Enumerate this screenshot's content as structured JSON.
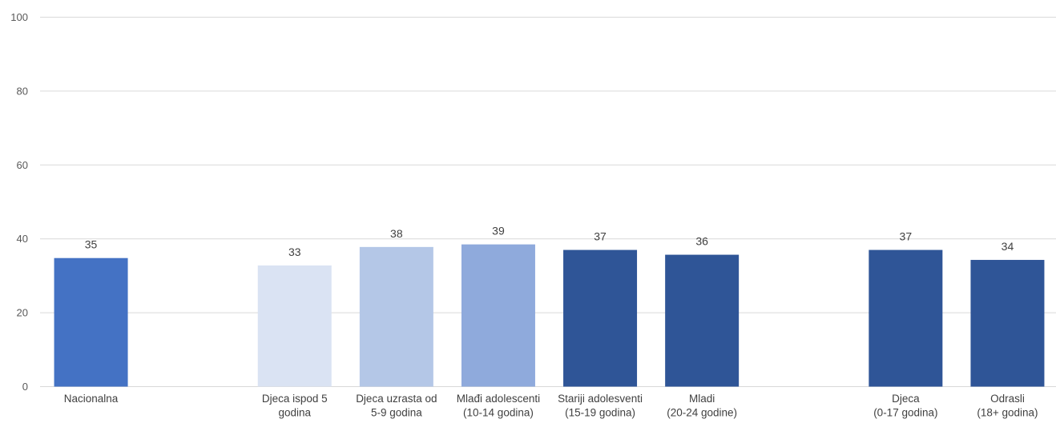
{
  "chart_data": {
    "type": "bar",
    "title": "",
    "xlabel": "",
    "ylabel": "",
    "ylim": [
      0,
      100
    ],
    "yticks": [
      0,
      20,
      40,
      60,
      80,
      100
    ],
    "grid": true,
    "legend": "none",
    "data_labels": true,
    "categories": [
      [
        "Nacionalna"
      ],
      [],
      [
        "Djeca ispod 5",
        "godina"
      ],
      [
        "Djeca uzrasta od",
        "5-9 godina"
      ],
      [
        "Mlađi adolescenti",
        "(10-14 godina)"
      ],
      [
        "Stariji adolesventi",
        "(15-19 godina)"
      ],
      [
        "Mladi",
        "(20-24 godine)"
      ],
      [],
      [
        "Djeca",
        "(0-17 godina)"
      ],
      [
        "Odrasli",
        "(18+ godina)"
      ]
    ],
    "values": [
      34.8,
      null,
      32.8,
      37.8,
      38.5,
      37.0,
      35.7,
      null,
      37.0,
      34.3
    ],
    "value_labels": [
      "35",
      "",
      "33",
      "38",
      "39",
      "37",
      "36",
      "",
      "37",
      "34"
    ],
    "bar_colors": [
      "#4472c4",
      null,
      "#dae3f3",
      "#b4c7e7",
      "#8faadc",
      "#2f5597",
      "#2f5597",
      null,
      "#2f5597",
      "#2f5597"
    ]
  }
}
